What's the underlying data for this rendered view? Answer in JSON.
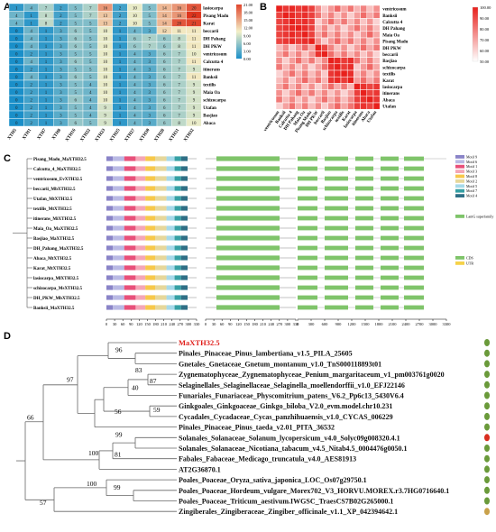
{
  "panels": {
    "a": {
      "label": "A",
      "rows": [
        "lasiocarpa",
        "Pisang Madu",
        "Karat",
        "beccarii",
        "DH Pahang",
        "DH PKW",
        "ventricosum",
        "Calcutta 4",
        "itinerans",
        "Banksii",
        "textilis",
        "Maia Oa",
        "schizocarpa",
        "Utafan",
        "Basjiao",
        "Abaca"
      ],
      "cols": [
        "XTH5",
        "XTH1",
        "XTH7",
        "XTH8",
        "XTH16",
        "XTH22",
        "XTH23",
        "XTH25",
        "XTH27",
        "XTH30",
        "XTH28",
        "XTH31",
        "XTH32"
      ],
      "matrix": [
        [
          1,
          4,
          7,
          2,
          5,
          7,
          16,
          2,
          10,
          5,
          14,
          16,
          20
        ],
        [
          4,
          1,
          8,
          2,
          5,
          7,
          13,
          2,
          10,
          5,
          14,
          16,
          22
        ],
        [
          4,
          1,
          8,
          2,
          5,
          5,
          13,
          2,
          10,
          5,
          14,
          20,
          21
        ],
        [
          0,
          4,
          1,
          3,
          6,
          5,
          10,
          1,
          4,
          3,
          12,
          11,
          11
        ],
        [
          0,
          4,
          1,
          3,
          6,
          5,
          10,
          1,
          6,
          7,
          6,
          8,
          11
        ],
        [
          0,
          4,
          1,
          3,
          6,
          5,
          10,
          1,
          6,
          7,
          6,
          8,
          11
        ],
        [
          0,
          2,
          1,
          3,
          5,
          5,
          10,
          1,
          4,
          3,
          6,
          7,
          10
        ],
        [
          0,
          4,
          1,
          3,
          6,
          5,
          10,
          1,
          4,
          3,
          6,
          7,
          11
        ],
        [
          0,
          2,
          1,
          3,
          5,
          5,
          10,
          1,
          4,
          3,
          6,
          7,
          9
        ],
        [
          0,
          4,
          1,
          3,
          6,
          5,
          10,
          1,
          4,
          3,
          6,
          7,
          11
        ],
        [
          0,
          2,
          1,
          3,
          5,
          4,
          10,
          1,
          4,
          3,
          6,
          7,
          9
        ],
        [
          0,
          2,
          1,
          3,
          5,
          4,
          10,
          1,
          4,
          3,
          6,
          7,
          9
        ],
        [
          0,
          2,
          1,
          3,
          6,
          4,
          10,
          1,
          4,
          3,
          6,
          7,
          9
        ],
        [
          0,
          2,
          1,
          3,
          5,
          4,
          9,
          1,
          4,
          3,
          6,
          7,
          9
        ],
        [
          0,
          2,
          1,
          3,
          5,
          4,
          9,
          1,
          4,
          3,
          6,
          7,
          9
        ],
        [
          0,
          2,
          1,
          3,
          6,
          5,
          9,
          1,
          4,
          3,
          6,
          8,
          10
        ]
      ],
      "colorbar_ticks": [
        "21.00",
        "18.00",
        "15.00",
        "12.00",
        "9.00",
        "6.00",
        "3.00",
        "0.00"
      ],
      "colors": {
        "low": "#1a8fc9",
        "mid": "#f3f0c8",
        "high": "#e0452c"
      }
    },
    "b": {
      "label": "B",
      "rows": [
        "ventricosum",
        "Banksii",
        "Calcutta 4",
        "DH Pahang",
        "Maia Oa",
        "Pisang Madu",
        "DH PKW",
        "beccarii",
        "Basjiao",
        "schizocarpa",
        "textilis",
        "Karat",
        "lasiocarpa",
        "itinerans",
        "Abaca",
        "Utafan"
      ],
      "colorbar_ticks": [
        "100.00",
        "90.00",
        "80.00",
        "70.00",
        "60.00",
        "50.00"
      ],
      "colors": {
        "high": "#e8201c",
        "low": "#ffffff"
      }
    },
    "c": {
      "label": "C",
      "genes": [
        "Pisang_Madu_MaXTH32.5",
        "Calcutta_4_MaXTH32.5",
        "ventricosum_EvXTH32.5",
        "beccarii_MbXTH32.5",
        "Utafan_MtXTH32.5",
        "textilis_MtXTH32.5",
        "itinerans_MiXTH32.5",
        "Maia_Oa_MaXTH32.5",
        "Basjiao_MaXTH32.5",
        "DH_Pahang_MaXTH32.5",
        "Abaca_MtXTH32.5",
        "Karat_MtXTH32.5",
        "lasiocarpa_MlXTH32.5",
        "schizocarpa_MsXTH32.5",
        "DH_PKW_MbXTH32.5",
        "Banksii_MaXTH32.5"
      ],
      "motif_legend": [
        "Motif 9",
        "Motif 6",
        "Motif 1",
        "Motif 3",
        "Motif 8",
        "Motif 2",
        "Motif 5",
        "Motif 7",
        "Motif 4"
      ],
      "motif_colors": [
        "#8a84c8",
        "#b9b9e4",
        "#e8507a",
        "#f4a6b6",
        "#f7c84a",
        "#e6d79a",
        "#a6d9e9",
        "#35a0a4",
        "#2f6f86"
      ],
      "domain_legend": "LamG superfamily",
      "gene_legend": [
        "CDS",
        "UTR"
      ],
      "axis1": [
        "0",
        "30",
        "60",
        "90",
        "120",
        "150",
        "180",
        "210",
        "240",
        "270",
        "300",
        "330"
      ],
      "axis2": [
        "0",
        "30",
        "60",
        "90",
        "120",
        "150",
        "180",
        "210",
        "240",
        "270",
        "300",
        "330"
      ],
      "axis3": [
        "0",
        "300",
        "600",
        "900",
        "1200",
        "1500",
        "1800",
        "2100",
        "2400",
        "2700",
        "3000",
        "3300"
      ]
    },
    "d": {
      "label": "D",
      "taxa": [
        {
          "name": "MaXTH32.5",
          "highlight": true
        },
        {
          "name": "Pinales_Pinaceae_Pinus_lambertiana_v1.5_PILA_25605"
        },
        {
          "name": "Gnetales_Gnetaceae_Gnetum_montanum_v1.0_TnS000118893t01"
        },
        {
          "name": "Zygnematophyceae_Zygnematophyceae_Penium_margaritaceum_v1_pm003761g0020"
        },
        {
          "name": "Selaginellales_Selaginellaceae_Selaginella_moellendorffii_v1.0_EFJ22146"
        },
        {
          "name": "Funariales_Funariaceae_Physcomitrium_patens_V6.2_Pp6c13_5430V6.4"
        },
        {
          "name": "Ginkgoales_Ginkgoaceae_Ginkgo_biloba_V2.0_evm.model.chr10.231"
        },
        {
          "name": "Cycadales_Cycadaceae_Cycas_panzhihuaensis_v1.0_CYCAS_006229"
        },
        {
          "name": "Pinales_Pinaceae_Pinus_taeda_v2.01_PITA_36532"
        },
        {
          "name": "Solanales_Solanaceae_Solanum_lycopersicum_v4.0_Solyc09g008320.4.1"
        },
        {
          "name": "Solanales_Solanaceae_Nicotiana_tabacum_v4.5_Nitab4.5_0004476g0050.1"
        },
        {
          "name": "Fabales_Fabaceae_Medicago_truncatula_v4.0_AES81913"
        },
        {
          "name": "AT2G36870.1"
        },
        {
          "name": "Poales_Poaceae_Oryza_sativa_japonica_LOC_Os07g29750.1"
        },
        {
          "name": "Poales_Poaceae_Hordeum_vulgare_Morex702_V3_HORVU.MOREX.r3.7HG0716640.1"
        },
        {
          "name": "Poales_Poaceae_Triticum_aestivum.IWGSC_TraesCS7B02G265000.1"
        },
        {
          "name": "Zingiberales_Zingiberaceae_Zingiber_officinale_v1.1_XP_042394642.1"
        }
      ],
      "bootstrap": [
        "96",
        "97",
        "83",
        "87",
        "40",
        "59",
        "56",
        "66",
        "99",
        "100",
        "81",
        "99",
        "100",
        "57"
      ],
      "highlight_color": "#e0201c"
    }
  }
}
